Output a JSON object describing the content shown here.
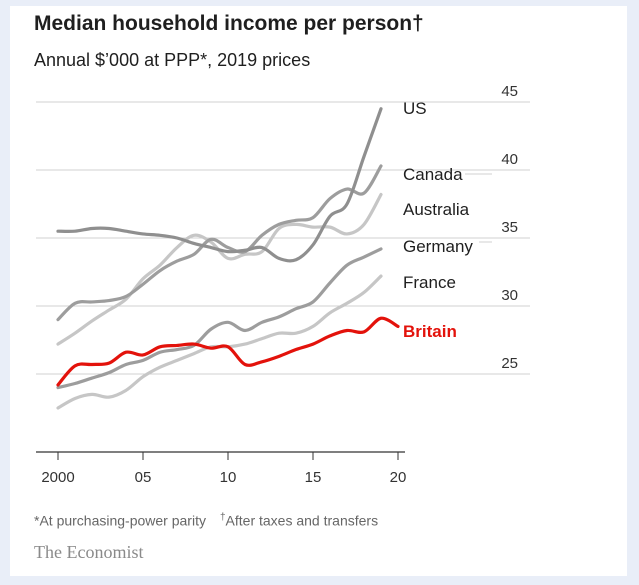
{
  "title": "Median household income per person†",
  "subtitle": "Annual $’000 at PPP*, 2019 prices",
  "footnote_1": "*At purchasing-power parity",
  "footnote_2_mark": "†",
  "footnote_2": "After taxes and transfers",
  "brand": "The Economist",
  "chart_data": {
    "type": "line",
    "xlim": [
      2000,
      2020
    ],
    "ylim": [
      20,
      45
    ],
    "x_ticks": [
      2000,
      2005,
      2010,
      2015,
      2020
    ],
    "x_tick_labels": [
      "2000",
      "05",
      "10",
      "15",
      "20"
    ],
    "y_ticks": [
      25,
      30,
      35,
      40,
      45
    ],
    "y_tick_labels": [
      "25",
      "30",
      "35",
      "40",
      "45"
    ],
    "y_axis_position": "right",
    "grid": "horizontal",
    "legend": "direct labels at line ends",
    "series": [
      {
        "name": "US",
        "color": "#8f8f8f",
        "label_color": "#1f1f1f",
        "x": [
          2000,
          2001,
          2002,
          2003,
          2004,
          2005,
          2006,
          2007,
          2008,
          2009,
          2010,
          2011,
          2012,
          2013,
          2014,
          2015,
          2016,
          2017,
          2018,
          2019
        ],
        "values": [
          35.5,
          35.5,
          35.7,
          35.7,
          35.5,
          35.3,
          35.2,
          35.0,
          34.6,
          34.3,
          34.0,
          34.1,
          34.3,
          33.5,
          33.4,
          34.5,
          36.6,
          37.5,
          41.0,
          44.5
        ]
      },
      {
        "name": "Canada",
        "color": "#9d9d9d",
        "label_color": "#1f1f1f",
        "x": [
          2000,
          2001,
          2002,
          2003,
          2004,
          2005,
          2006,
          2007,
          2008,
          2009,
          2010,
          2011,
          2012,
          2013,
          2014,
          2015,
          2016,
          2017,
          2018,
          2019
        ],
        "values": [
          29.0,
          30.2,
          30.3,
          30.4,
          30.7,
          31.6,
          32.6,
          33.3,
          33.8,
          34.9,
          34.3,
          34.0,
          35.2,
          36.0,
          36.3,
          36.5,
          37.9,
          38.6,
          38.3,
          40.3
        ]
      },
      {
        "name": "Australia",
        "color": "#c6c6c6",
        "label_color": "#1f1f1f",
        "x": [
          2000,
          2001,
          2002,
          2003,
          2004,
          2005,
          2006,
          2007,
          2008,
          2009,
          2010,
          2011,
          2012,
          2013,
          2014,
          2015,
          2016,
          2017,
          2018,
          2019
        ],
        "values": [
          27.2,
          28.0,
          28.9,
          29.7,
          30.5,
          32.0,
          33.0,
          34.3,
          35.2,
          34.7,
          33.5,
          33.8,
          34.0,
          35.7,
          36.0,
          35.8,
          35.8,
          35.3,
          36.0,
          38.2
        ]
      },
      {
        "name": "Germany",
        "color": "#9d9d9d",
        "label_color": "#1f1f1f",
        "x": [
          2000,
          2001,
          2002,
          2003,
          2004,
          2005,
          2006,
          2007,
          2008,
          2009,
          2010,
          2011,
          2012,
          2013,
          2014,
          2015,
          2016,
          2017,
          2018,
          2019
        ],
        "values": [
          24.0,
          24.3,
          24.7,
          25.1,
          25.7,
          26.0,
          26.6,
          26.8,
          27.1,
          28.3,
          28.8,
          28.2,
          28.8,
          29.2,
          29.8,
          30.3,
          31.7,
          33.0,
          33.6,
          34.2
        ]
      },
      {
        "name": "France",
        "color": "#c6c6c6",
        "label_color": "#1f1f1f",
        "x": [
          2000,
          2001,
          2002,
          2003,
          2004,
          2005,
          2006,
          2007,
          2008,
          2009,
          2010,
          2011,
          2012,
          2013,
          2014,
          2015,
          2016,
          2017,
          2018,
          2019
        ],
        "values": [
          22.5,
          23.2,
          23.5,
          23.3,
          23.8,
          24.8,
          25.5,
          26.0,
          26.5,
          27.0,
          27.0,
          27.2,
          27.6,
          28.0,
          28.0,
          28.5,
          29.5,
          30.2,
          31.0,
          32.2
        ]
      },
      {
        "name": "Britain",
        "color": "#e3120b",
        "label_color": "#e3120b",
        "x": [
          2000,
          2001,
          2002,
          2003,
          2004,
          2005,
          2006,
          2007,
          2008,
          2009,
          2010,
          2011,
          2012,
          2013,
          2014,
          2015,
          2016,
          2017,
          2018,
          2019,
          2020
        ],
        "values": [
          24.2,
          25.6,
          25.7,
          25.8,
          26.6,
          26.4,
          27.0,
          27.1,
          27.2,
          26.9,
          27.0,
          25.7,
          25.9,
          26.3,
          26.8,
          27.2,
          27.8,
          28.2,
          28.1,
          29.1,
          28.5
        ]
      }
    ]
  }
}
